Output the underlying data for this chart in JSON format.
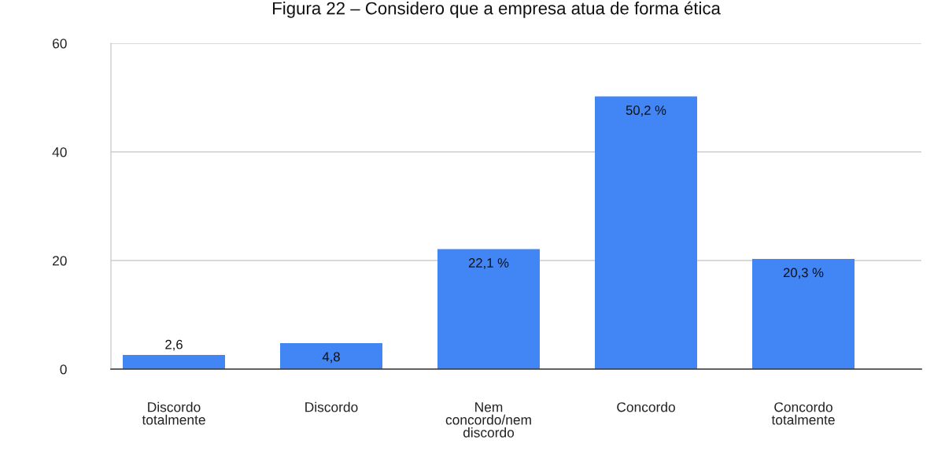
{
  "chart_data": {
    "type": "bar",
    "title": "Figura 22 – Considero que a empresa atua de forma ética",
    "categories": [
      "Discordo\ntotalmente",
      "Discordo",
      "Nem\nconcordo/nem\ndiscordo",
      "Concordo",
      "Concordo\ntotalmente"
    ],
    "values": [
      2.6,
      4.8,
      22.1,
      50.2,
      20.3
    ],
    "value_labels": [
      "2,6",
      "4,8",
      "22,1 %",
      "50,2 %",
      "20,3 %"
    ],
    "color": "#4285f4",
    "ylim": [
      0,
      60
    ],
    "yticks": [
      0,
      20,
      40,
      60
    ],
    "grid": "y"
  }
}
